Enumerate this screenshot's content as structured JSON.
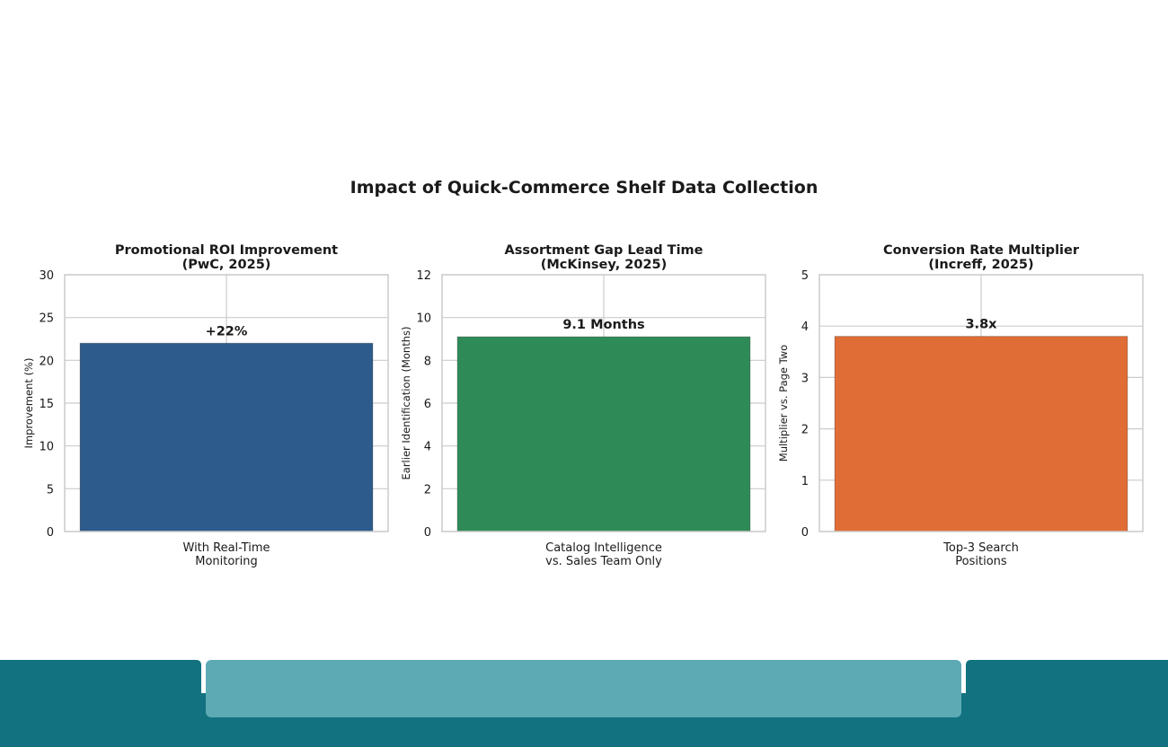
{
  "main_title": "Impact of Quick-Commerce Shelf Data Collection",
  "colors": {
    "teal_dark": "#12727F",
    "teal_light": "#5DAAB5",
    "grid": "#CCCCCC",
    "text": "#1A1A1A"
  },
  "chart_data": [
    {
      "type": "bar",
      "title_line1": "Promotional ROI Improvement",
      "title_line2": "(PwC, 2025)",
      "ylabel": "Improvement (%)",
      "categories": [
        "With Real-Time\nMonitoring"
      ],
      "category_lines": [
        "With Real-Time",
        "Monitoring"
      ],
      "values": [
        22
      ],
      "value_label": "+22%",
      "ylim": [
        0,
        30
      ],
      "yticks": [
        0,
        5,
        10,
        15,
        20,
        25,
        30
      ],
      "color": "#2D5B8C",
      "grid": true
    },
    {
      "type": "bar",
      "title_line1": "Assortment Gap Lead Time",
      "title_line2": "(McKinsey, 2025)",
      "ylabel": "Earlier Identification (Months)",
      "categories": [
        "Catalog Intelligence\nvs. Sales Team Only"
      ],
      "category_lines": [
        "Catalog Intelligence",
        "vs. Sales Team Only"
      ],
      "values": [
        9.1
      ],
      "value_label": "9.1 Months",
      "ylim": [
        0,
        12
      ],
      "yticks": [
        0,
        2,
        4,
        6,
        8,
        10,
        12
      ],
      "color": "#2E8B57",
      "grid": true
    },
    {
      "type": "bar",
      "title_line1": "Conversion Rate Multiplier",
      "title_line2": "(Increff, 2025)",
      "ylabel": "Multiplier vs. Page Two",
      "categories": [
        "Top-3 Search\nPositions"
      ],
      "category_lines": [
        "Top-3 Search",
        "Positions"
      ],
      "values": [
        3.8
      ],
      "value_label": "3.8x",
      "ylim": [
        0,
        5
      ],
      "yticks": [
        0,
        1,
        2,
        3,
        4,
        5
      ],
      "color": "#E06D35",
      "grid": true
    }
  ]
}
